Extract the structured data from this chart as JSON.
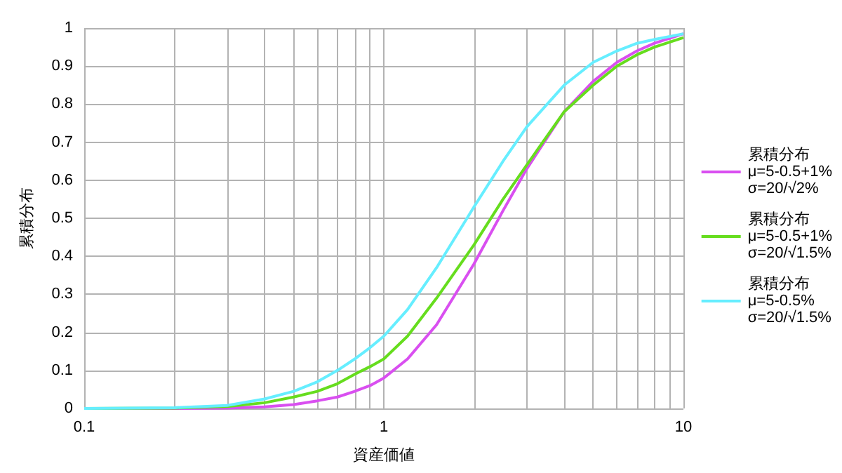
{
  "chart_data": {
    "type": "line",
    "xlabel": "資産価値",
    "ylabel": "累積分布",
    "log": "x",
    "grid": true,
    "legend": "right",
    "marker": "none",
    "line_style": "solid",
    "xlim": [
      0.1,
      10
    ],
    "xticks": [
      0.1,
      1,
      10
    ],
    "ylim": [
      0,
      1
    ],
    "yticks": [
      0,
      0.1,
      0.2,
      0.3,
      0.4,
      0.5,
      0.6,
      0.7,
      0.8,
      0.9,
      1
    ],
    "x": [
      0.1,
      0.2,
      0.3,
      0.4,
      0.5,
      0.6,
      0.7,
      0.8,
      0.9,
      1,
      1.2,
      1.5,
      2,
      2.5,
      3,
      4,
      5,
      6,
      7,
      8,
      10
    ],
    "series": [
      {
        "name": "累積分布\nμ=5-0.5+1%\nσ=20/√2%",
        "color": "#d94ff0",
        "values": [
          0,
          0,
          0.001,
          0.004,
          0.01,
          0.02,
          0.03,
          0.045,
          0.06,
          0.08,
          0.13,
          0.22,
          0.38,
          0.52,
          0.63,
          0.78,
          0.86,
          0.91,
          0.94,
          0.96,
          0.985
        ]
      },
      {
        "name": "累積分布\nμ=5-0.5+1%\nσ=20/√1.5%",
        "color": "#66dd1e",
        "values": [
          0,
          0.001,
          0.005,
          0.015,
          0.03,
          0.045,
          0.065,
          0.09,
          0.11,
          0.13,
          0.19,
          0.29,
          0.43,
          0.55,
          0.64,
          0.78,
          0.85,
          0.9,
          0.93,
          0.95,
          0.975
        ]
      },
      {
        "name": "累積分布\nμ=5-0.5%\nσ=20/√1.5%",
        "color": "#66eeff",
        "values": [
          0,
          0.002,
          0.008,
          0.025,
          0.045,
          0.07,
          0.1,
          0.13,
          0.16,
          0.19,
          0.26,
          0.37,
          0.53,
          0.65,
          0.74,
          0.85,
          0.91,
          0.94,
          0.96,
          0.97,
          0.985
        ]
      }
    ]
  }
}
